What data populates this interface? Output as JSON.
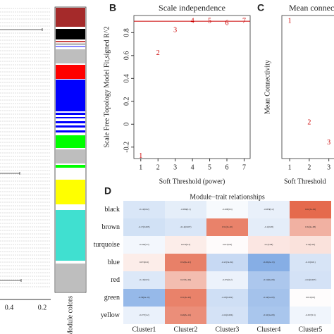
{
  "dendrogram": {
    "axis_labels": [
      "0.4",
      "0.2"
    ],
    "module_label": "Module colors"
  },
  "chart_data": [
    {
      "type": "scatter",
      "panel": "B",
      "title": "Scale independence",
      "x_label": "Soft Threshold (power)",
      "y_label": "Scale Free Topology Model Fit,signed R^2",
      "x": [
        1,
        2,
        3,
        4,
        5,
        6,
        7
      ],
      "values": [
        -0.28,
        0.62,
        0.82,
        0.9,
        0.9,
        0.88,
        0.9
      ],
      "color": "#cc0000",
      "hline": 0.9,
      "xlim": [
        0.6,
        7.35
      ],
      "ylim": [
        -0.3,
        0.95
      ],
      "xticks": [
        1,
        2,
        3,
        4,
        5,
        6,
        7
      ],
      "yticks": [
        -0.2,
        0,
        0.2,
        0.4,
        0.6,
        0.8
      ]
    },
    {
      "type": "scatter",
      "panel": "C",
      "title": "Mean connectivity",
      "x_label": "Soft Threshold",
      "y_label": "Mean Connectivity",
      "x": [
        1,
        2,
        3
      ],
      "values": [
        96,
        25,
        11
      ],
      "color": "#cc0000",
      "xlim": [
        0.6,
        4.2
      ],
      "ylim": [
        0,
        100
      ],
      "xticks": [
        1,
        2,
        3
      ]
    },
    {
      "type": "heatmap",
      "panel": "D",
      "title": "Module−trait relationships",
      "rows": [
        "black",
        "brown",
        "turquoise",
        "blue",
        "red",
        "green",
        "yellow"
      ],
      "columns": [
        "Cluster1",
        "Cluster2",
        "Cluster3",
        "Cluster4",
        "Cluster5"
      ],
      "values": [
        [
          -0.14,
          -0.096,
          -0.028,
          -0.083,
          0.61
        ],
        [
          -0.17,
          -0.14,
          0.51,
          -0.1,
          0.32
        ],
        [
          -0.043,
          0.074,
          0.015,
          0.1,
          0.12
        ],
        [
          0.074,
          0.52,
          -0.21,
          -0.45,
          -0.15
        ],
        [
          -0.13,
          0.27,
          -0.072,
          -0.31,
          -0.16
        ],
        [
          -0.39,
          0.51,
          -0.18,
          -0.34,
          0.012
        ],
        [
          -0.077,
          0.46,
          -0.16,
          -0.32,
          -0.057
        ]
      ],
      "value_labels": [
        [
          "-0.14(0.02)",
          "-0.096(0.1)",
          "-0.028(0.6)",
          "-0.083(0.2)",
          "0.61(3e-29)"
        ],
        [
          "-0.17(0.005)",
          "-0.14(0.007)",
          "0.51(3e-20)",
          "-0.1(0.08)",
          "0.32(4e-08)"
        ],
        [
          "-0.043(0.5)",
          "0.074(0.2)",
          "0.015(0.8)",
          "0.1(0.08)",
          "0.12(0.05)"
        ],
        [
          "0.074(0.2)",
          "0.52(2e-21)",
          "-0.21(3e-04)",
          "-0.45(2e-15)",
          "-0.15(0.01)"
        ],
        [
          "-0.13(0.03)",
          "0.27(3e-06)",
          "-0.072(0.2)",
          "-0.31(8e-08)",
          "-0.16(0.007)"
        ],
        [
          "-0.39(4e-11)",
          "0.51(2e-20)",
          "-0.18(0.002)",
          "-0.34(5e-09)",
          "0.012(0.8)"
        ],
        [
          "-0.077(0.2)",
          "0.46(3e-16)",
          "-0.16(0.006)",
          "-0.32(3e-08)",
          "-0.057(0.3)"
        ]
      ],
      "zlim": [
        -1,
        1
      ],
      "colors": [
        "#3f7fd6",
        "#ffffff",
        "#e0502f"
      ]
    }
  ]
}
